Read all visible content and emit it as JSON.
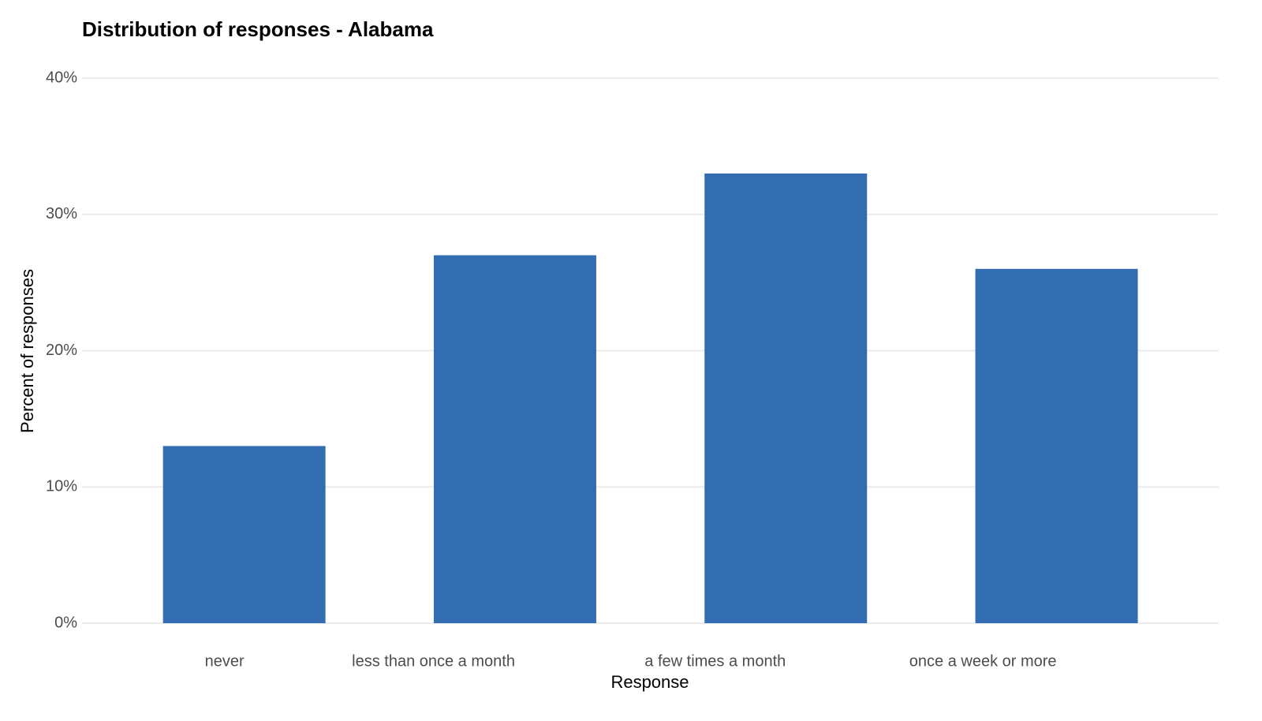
{
  "chart_data": {
    "type": "bar",
    "title": "Distribution of responses - Alabama",
    "x_label": "Response",
    "y_label": "Percent of responses",
    "categories": [
      "never",
      "less than once a month",
      "a few times a month",
      "once a week or more"
    ],
    "values": [
      13,
      27,
      33,
      26
    ],
    "color": "#326db2",
    "ylim": [
      0,
      40
    ],
    "yticks": [
      {
        "value": 0,
        "label": "0%"
      },
      {
        "value": 10,
        "label": "10%"
      },
      {
        "value": 20,
        "label": "20%"
      },
      {
        "value": 30,
        "label": "30%"
      },
      {
        "value": 40,
        "label": "40%"
      }
    ],
    "grid": true
  }
}
